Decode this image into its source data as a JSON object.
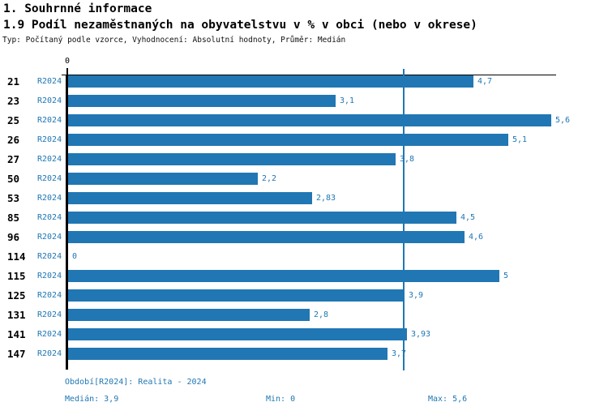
{
  "header": {
    "section_title": "1. Souhrnné informace",
    "chart_title": "1.9 Podíl nezaměstnaných na obyvatelstvu v % v obci (nebo v okrese)",
    "meta": "Typ: Počítaný podle vzorce, Vyhodnocení: Absolutní hodnoty, Průměr: Medián"
  },
  "axis": {
    "zero_label": "0"
  },
  "colors": {
    "bar": "#2077b4",
    "blue_text": "#2077b4",
    "median_line": "#2077b4",
    "axis": "#000000"
  },
  "rows": [
    {
      "category": "21",
      "period": "R2024",
      "value": 4.7,
      "value_label": "4,7"
    },
    {
      "category": "23",
      "period": "R2024",
      "value": 3.1,
      "value_label": "3,1"
    },
    {
      "category": "25",
      "period": "R2024",
      "value": 5.6,
      "value_label": "5,6"
    },
    {
      "category": "26",
      "period": "R2024",
      "value": 5.1,
      "value_label": "5,1"
    },
    {
      "category": "27",
      "period": "R2024",
      "value": 3.8,
      "value_label": "3,8"
    },
    {
      "category": "50",
      "period": "R2024",
      "value": 2.2,
      "value_label": "2,2"
    },
    {
      "category": "53",
      "period": "R2024",
      "value": 2.83,
      "value_label": "2,83"
    },
    {
      "category": "85",
      "period": "R2024",
      "value": 4.5,
      "value_label": "4,5"
    },
    {
      "category": "96",
      "period": "R2024",
      "value": 4.6,
      "value_label": "4,6"
    },
    {
      "category": "114",
      "period": "R2024",
      "value": 0,
      "value_label": "0"
    },
    {
      "category": "115",
      "period": "R2024",
      "value": 5,
      "value_label": "5"
    },
    {
      "category": "125",
      "period": "R2024",
      "value": 3.9,
      "value_label": "3,9"
    },
    {
      "category": "131",
      "period": "R2024",
      "value": 2.8,
      "value_label": "2,8"
    },
    {
      "category": "141",
      "period": "R2024",
      "value": 3.93,
      "value_label": "3,93"
    },
    {
      "category": "147",
      "period": "R2024",
      "value": 3.7,
      "value_label": "3,7"
    }
  ],
  "footer": {
    "period_info": "Období[R2024]: Realita - 2024",
    "median": "Medián: 3,9",
    "min": "Min: 0",
    "max": "Max: 5,6"
  },
  "chart_data": {
    "type": "bar",
    "orientation": "horizontal",
    "title": "1.9 Podíl nezaměstnaných na obyvatelstvu v % v obci (nebo v okrese)",
    "subtitle": "Typ: Počítaný podle vzorce, Vyhodnocení: Absolutní hodnoty, Průměr: Medián",
    "categories": [
      "21",
      "23",
      "25",
      "26",
      "27",
      "50",
      "53",
      "85",
      "96",
      "114",
      "115",
      "125",
      "131",
      "141",
      "147"
    ],
    "series": [
      {
        "name": "R2024",
        "values": [
          4.7,
          3.1,
          5.6,
          5.1,
          3.8,
          2.2,
          2.83,
          4.5,
          4.6,
          0,
          5,
          3.9,
          2.8,
          3.93,
          3.7
        ]
      }
    ],
    "xlabel": "",
    "ylabel": "",
    "xlim": [
      0,
      5.6
    ],
    "grid": false,
    "legend_position": "none",
    "median": 3.9,
    "min": 0,
    "max": 5.6,
    "median_reference_line": 3.9
  }
}
